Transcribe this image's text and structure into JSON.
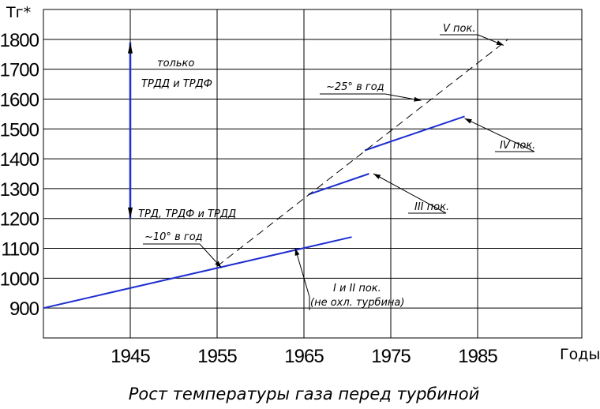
{
  "chart_data": {
    "type": "line",
    "title": "Рост температуры газа перед турбиной",
    "xlabel": "Годы",
    "ylabel": "Tг*",
    "xlim": [
      1935,
      1997
    ],
    "ylim": [
      800,
      1900
    ],
    "xticks": [
      "1945",
      "1955",
      "1965",
      "1975",
      "1985"
    ],
    "yticks": [
      "900",
      "1000",
      "1100",
      "1200",
      "1300",
      "1400",
      "1500",
      "1600",
      "1700",
      "1800"
    ],
    "grid": true,
    "series": [
      {
        "name": "I и II пок.",
        "color": "#1f2fd0",
        "dash": false,
        "points": [
          [
            1935,
            900
          ],
          [
            1970.5,
            1138
          ]
        ]
      },
      {
        "name": "III пок.",
        "color": "#1f2fd0",
        "dash": false,
        "points": [
          [
            1965.5,
            1280
          ],
          [
            1972.5,
            1350
          ]
        ]
      },
      {
        "name": "IV пок.",
        "color": "#1f2fd0",
        "dash": false,
        "points": [
          [
            1972,
            1428
          ],
          [
            1983.5,
            1542
          ]
        ]
      },
      {
        "name": "V пок.",
        "color": "#000000",
        "dash": true,
        "points": [
          [
            1955,
            1040
          ],
          [
            1988.5,
            1800
          ]
        ]
      }
    ],
    "range_arrow": {
      "x": 1945,
      "from": 1200,
      "to": 1790,
      "color": "#1f2fd0"
    },
    "annotations": {
      "only_line1": "только",
      "only_line2": "ТРДД и ТРДФ",
      "engines_text": "ТРД, ТРДФ и ТРДД",
      "rate_10": "~10° в год",
      "rate_25": "~25° в год",
      "gen_1_2": "I и II пок.",
      "gen_1_2_note": "(не охл. турбина)",
      "gen_3": "III пок.",
      "gen_4": "IV пок.",
      "gen_5": "V пок."
    }
  }
}
